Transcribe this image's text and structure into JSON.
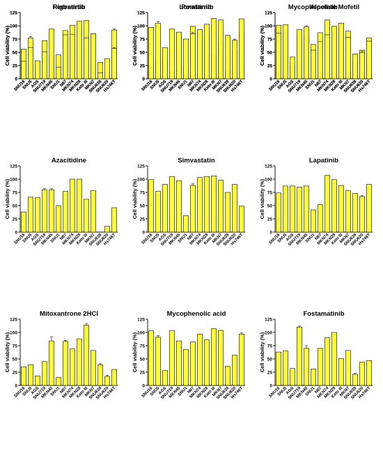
{
  "colors": {
    "bar": "#ffff33",
    "outline": "#000000"
  },
  "chart_data": [
    {
      "type": "bar",
      "title": "Rigosertib",
      "ylabel": "Cell viability (%)",
      "ylim": [
        0,
        125
      ],
      "yticks": [
        "0",
        "25",
        "50",
        "75",
        "100",
        "125"
      ],
      "categories": [
        "SNU16",
        "SNU5",
        "AGS",
        "SNU719",
        "MKN45",
        "SNU1",
        "N87",
        "MKN74",
        "MKN28",
        "Kato III",
        "MKN7",
        "SNU638",
        "SNU620",
        "Hs746T"
      ],
      "values": [
        56,
        77,
        28,
        72,
        43,
        45,
        91,
        101,
        97,
        110,
        85,
        31,
        13,
        92
      ],
      "errors": [
        0,
        3,
        0,
        0,
        0,
        0,
        0,
        0,
        0,
        0,
        0,
        0,
        0,
        2
      ]
    },
    {
      "type": "bar",
      "title": "Ponatinib",
      "ylabel": "Cell viability (%)",
      "ylim": [
        0,
        125
      ],
      "yticks": [
        "0",
        "25",
        "50",
        "75",
        "100",
        "125"
      ],
      "categories": [
        "SNU16",
        "SNU5",
        "AGS",
        "SNU719",
        "MKN45",
        "SNU1",
        "N87",
        "MKN74",
        "MKN28",
        "Kato III",
        "MKN7",
        "SNU638",
        "SNU620",
        "Hs746T"
      ],
      "values": [
        27,
        35,
        37,
        15,
        84,
        22,
        99,
        90,
        85,
        46,
        70,
        15,
        53,
        88
      ],
      "errors": [
        0,
        0,
        0,
        0,
        0,
        0,
        0,
        0,
        0,
        0,
        0,
        0,
        0,
        0
      ]
    },
    {
      "type": "bar",
      "title": "Mycophenolate Mofetil",
      "ylabel": "Cell viability (%)",
      "ylim": [
        0,
        125
      ],
      "yticks": [
        "0",
        "25",
        "50",
        "75",
        "100",
        "125"
      ],
      "categories": [
        "SNU16",
        "SNU5",
        "AGS",
        "SNU719",
        "MKN45",
        "SNU1",
        "N87",
        "MKN74",
        "MKN28",
        "Kato III",
        "MKN7",
        "SNU638",
        "SNU620",
        "Hs746T"
      ],
      "values": [
        101,
        88,
        26,
        82,
        84,
        65,
        87,
        111,
        93,
        100,
        90,
        30,
        54,
        77
      ],
      "errors": [
        0,
        0,
        0,
        0,
        0,
        0,
        0,
        0,
        0,
        2,
        0,
        0,
        0,
        0
      ]
    },
    {
      "type": "bar",
      "title": "Azacitidine",
      "ylabel": "Cell viability (%)",
      "ylim": [
        0,
        125
      ],
      "yticks": [
        "0",
        "25",
        "50",
        "75",
        "100",
        "125"
      ],
      "categories": [
        "SNU16",
        "SNU5",
        "AGS",
        "SNU719",
        "MKN45",
        "SNU1",
        "N87",
        "MKN74",
        "MKN28",
        "Kato III",
        "MKN7",
        "SNU638",
        "SNU620",
        "Hs746T"
      ],
      "values": [
        38,
        66,
        65,
        80,
        80,
        50,
        77,
        100,
        100,
        62,
        78,
        0,
        11,
        46
      ],
      "errors": [
        0,
        0,
        0,
        2,
        2,
        0,
        0,
        0,
        0,
        0,
        0,
        0,
        0,
        0
      ]
    },
    {
      "type": "bar",
      "title": "Simvastatin",
      "ylabel": "Cell viability (%)",
      "ylim": [
        0,
        125
      ],
      "yticks": [
        "0",
        "25",
        "50",
        "75",
        "100",
        "125"
      ],
      "categories": [
        "SNU16",
        "SNU5",
        "AGS",
        "SNU719",
        "MKN45",
        "SNU1",
        "N87",
        "MKN74",
        "MKN28",
        "Kato III",
        "MKN7",
        "SNU638",
        "SNU620",
        "Hs746T"
      ],
      "values": [
        99,
        77,
        90,
        105,
        97,
        31,
        88,
        103,
        105,
        106,
        98,
        75,
        90,
        49
      ],
      "errors": [
        0,
        0,
        0,
        0,
        0,
        0,
        3,
        0,
        0,
        0,
        0,
        0,
        0,
        0
      ]
    },
    {
      "type": "bar",
      "title": "Lapatinib",
      "ylabel": "Cell viability (%)",
      "ylim": [
        0,
        125
      ],
      "yticks": [
        "0",
        "25",
        "50",
        "75",
        "100",
        "125"
      ],
      "categories": [
        "SNU16",
        "SNU5",
        "AGS",
        "SNU719",
        "MKN45",
        "SNU1",
        "N87",
        "MKN74",
        "MKN28",
        "Kato III",
        "MKN7",
        "SNU638",
        "SNU620",
        "Hs746T"
      ],
      "values": [
        74,
        87,
        87,
        85,
        87,
        42,
        52,
        107,
        99,
        88,
        78,
        73,
        67,
        90
      ],
      "errors": [
        0,
        0,
        0,
        0,
        0,
        0,
        0,
        0,
        0,
        0,
        0,
        0,
        2,
        0
      ]
    },
    {
      "type": "bar",
      "title": "Mitoxantrone 2HCl",
      "ylabel": "Cell viability (%)",
      "ylim": [
        0,
        125
      ],
      "yticks": [
        "0",
        "25",
        "50",
        "75",
        "100",
        "125"
      ],
      "categories": [
        "SNU16",
        "SNU5",
        "AGS",
        "SNU719",
        "MKN45",
        "SNU1",
        "N87",
        "MKN74",
        "MKN28",
        "Kato III",
        "MKN7",
        "SNU638",
        "SNU620",
        "Hs746T"
      ],
      "values": [
        35,
        39,
        18,
        45,
        84,
        15,
        83,
        69,
        88,
        114,
        66,
        39,
        17,
        30
      ],
      "errors": [
        0,
        0,
        0,
        0,
        8,
        0,
        2,
        0,
        0,
        3,
        0,
        2,
        2,
        0
      ]
    },
    {
      "type": "bar",
      "title": "Mycophenolic acid",
      "ylabel": "Cell viability (%)",
      "ylim": [
        0,
        125
      ],
      "yticks": [
        "0",
        "25",
        "50",
        "75",
        "100",
        "125"
      ],
      "categories": [
        "SNU16",
        "SNU5",
        "AGS",
        "SNU719",
        "MKN45",
        "SNU1",
        "N87",
        "MKN74",
        "MKN28",
        "Kato III",
        "MKN7",
        "SNU638",
        "SNU620",
        "Hs746T"
      ],
      "values": [
        103,
        91,
        28,
        103,
        84,
        68,
        82,
        97,
        86,
        107,
        104,
        36,
        57,
        97
      ],
      "errors": [
        0,
        3,
        0,
        0,
        0,
        0,
        0,
        0,
        0,
        0,
        0,
        0,
        0,
        2
      ]
    },
    {
      "type": "bar",
      "title": "Fostamatinib",
      "ylabel": "Cell viability (%)",
      "ylim": [
        0,
        125
      ],
      "yticks": [
        "0",
        "25",
        "50",
        "75",
        "100",
        "125"
      ],
      "categories": [
        "SNU16",
        "SNU5",
        "AGS",
        "SNU719",
        "MKN45",
        "SNU1",
        "N87",
        "MKN74",
        "MKN28",
        "Kato III",
        "MKN7",
        "SNU638",
        "SNU620",
        "Hs746T"
      ],
      "values": [
        63,
        65,
        32,
        110,
        70,
        31,
        70,
        90,
        100,
        51,
        66,
        21,
        44,
        47
      ],
      "errors": [
        0,
        0,
        0,
        2,
        5,
        0,
        0,
        0,
        0,
        0,
        0,
        2,
        0,
        0
      ]
    },
    {
      "type": "bar",
      "title": "Fedratinib",
      "ylabel": "Cell viability (%)",
      "ylim": [
        0,
        125
      ],
      "yticks": [
        "0",
        "25",
        "50",
        "75",
        "100",
        "125"
      ],
      "categories": [
        "SNU16",
        "SNU5",
        "AGS",
        "SNU719",
        "MKN45",
        "SNU1",
        "N87",
        "MKN74",
        "MKN28",
        "Kato III",
        "MKN7",
        "SNU638",
        "SNU620",
        "Hs746T"
      ],
      "values": [
        33,
        59,
        34,
        51,
        94,
        22,
        83,
        84,
        109,
        77,
        85,
        11,
        38,
        57
      ],
      "errors": [
        0,
        0,
        0,
        0,
        0,
        0,
        0,
        0,
        0,
        0,
        0,
        0,
        0,
        2
      ]
    },
    {
      "type": "bar",
      "title": "Lonafarnib",
      "ylabel": "Cell viability (%)",
      "ylim": [
        0,
        125
      ],
      "yticks": [
        "0",
        "25",
        "50",
        "75",
        "100",
        "125"
      ],
      "categories": [
        "SNU16",
        "SNU5",
        "AGS",
        "SNU719",
        "MKN45",
        "SNU1",
        "N87",
        "MKN74",
        "MKN28",
        "Kato III",
        "MKN7",
        "SNU638",
        "SNU620",
        "Hs746T"
      ],
      "values": [
        97,
        105,
        59,
        94,
        88,
        75,
        85,
        93,
        103,
        114,
        111,
        82,
        73,
        113
      ],
      "errors": [
        0,
        3,
        0,
        0,
        0,
        0,
        2,
        0,
        0,
        0,
        0,
        0,
        2,
        0
      ]
    },
    {
      "type": "bar",
      "title": "Alpelisib",
      "ylabel": "Cell viability (%)",
      "ylim": [
        0,
        125
      ],
      "yticks": [
        "0",
        "25",
        "50",
        "75",
        "100",
        "125"
      ],
      "categories": [
        "SNU16",
        "SNU5",
        "AGS",
        "SNU719",
        "MKN45",
        "SNU1",
        "N87",
        "MKN74",
        "MKN28",
        "Kato III",
        "MKN7",
        "SNU638",
        "SNU620",
        "Hs746T"
      ],
      "values": [
        86,
        102,
        41,
        93,
        98,
        54,
        70,
        83,
        99,
        105,
        78,
        47,
        49,
        71
      ],
      "errors": [
        0,
        0,
        0,
        0,
        2,
        0,
        0,
        0,
        0,
        0,
        0,
        0,
        3,
        0
      ]
    }
  ]
}
